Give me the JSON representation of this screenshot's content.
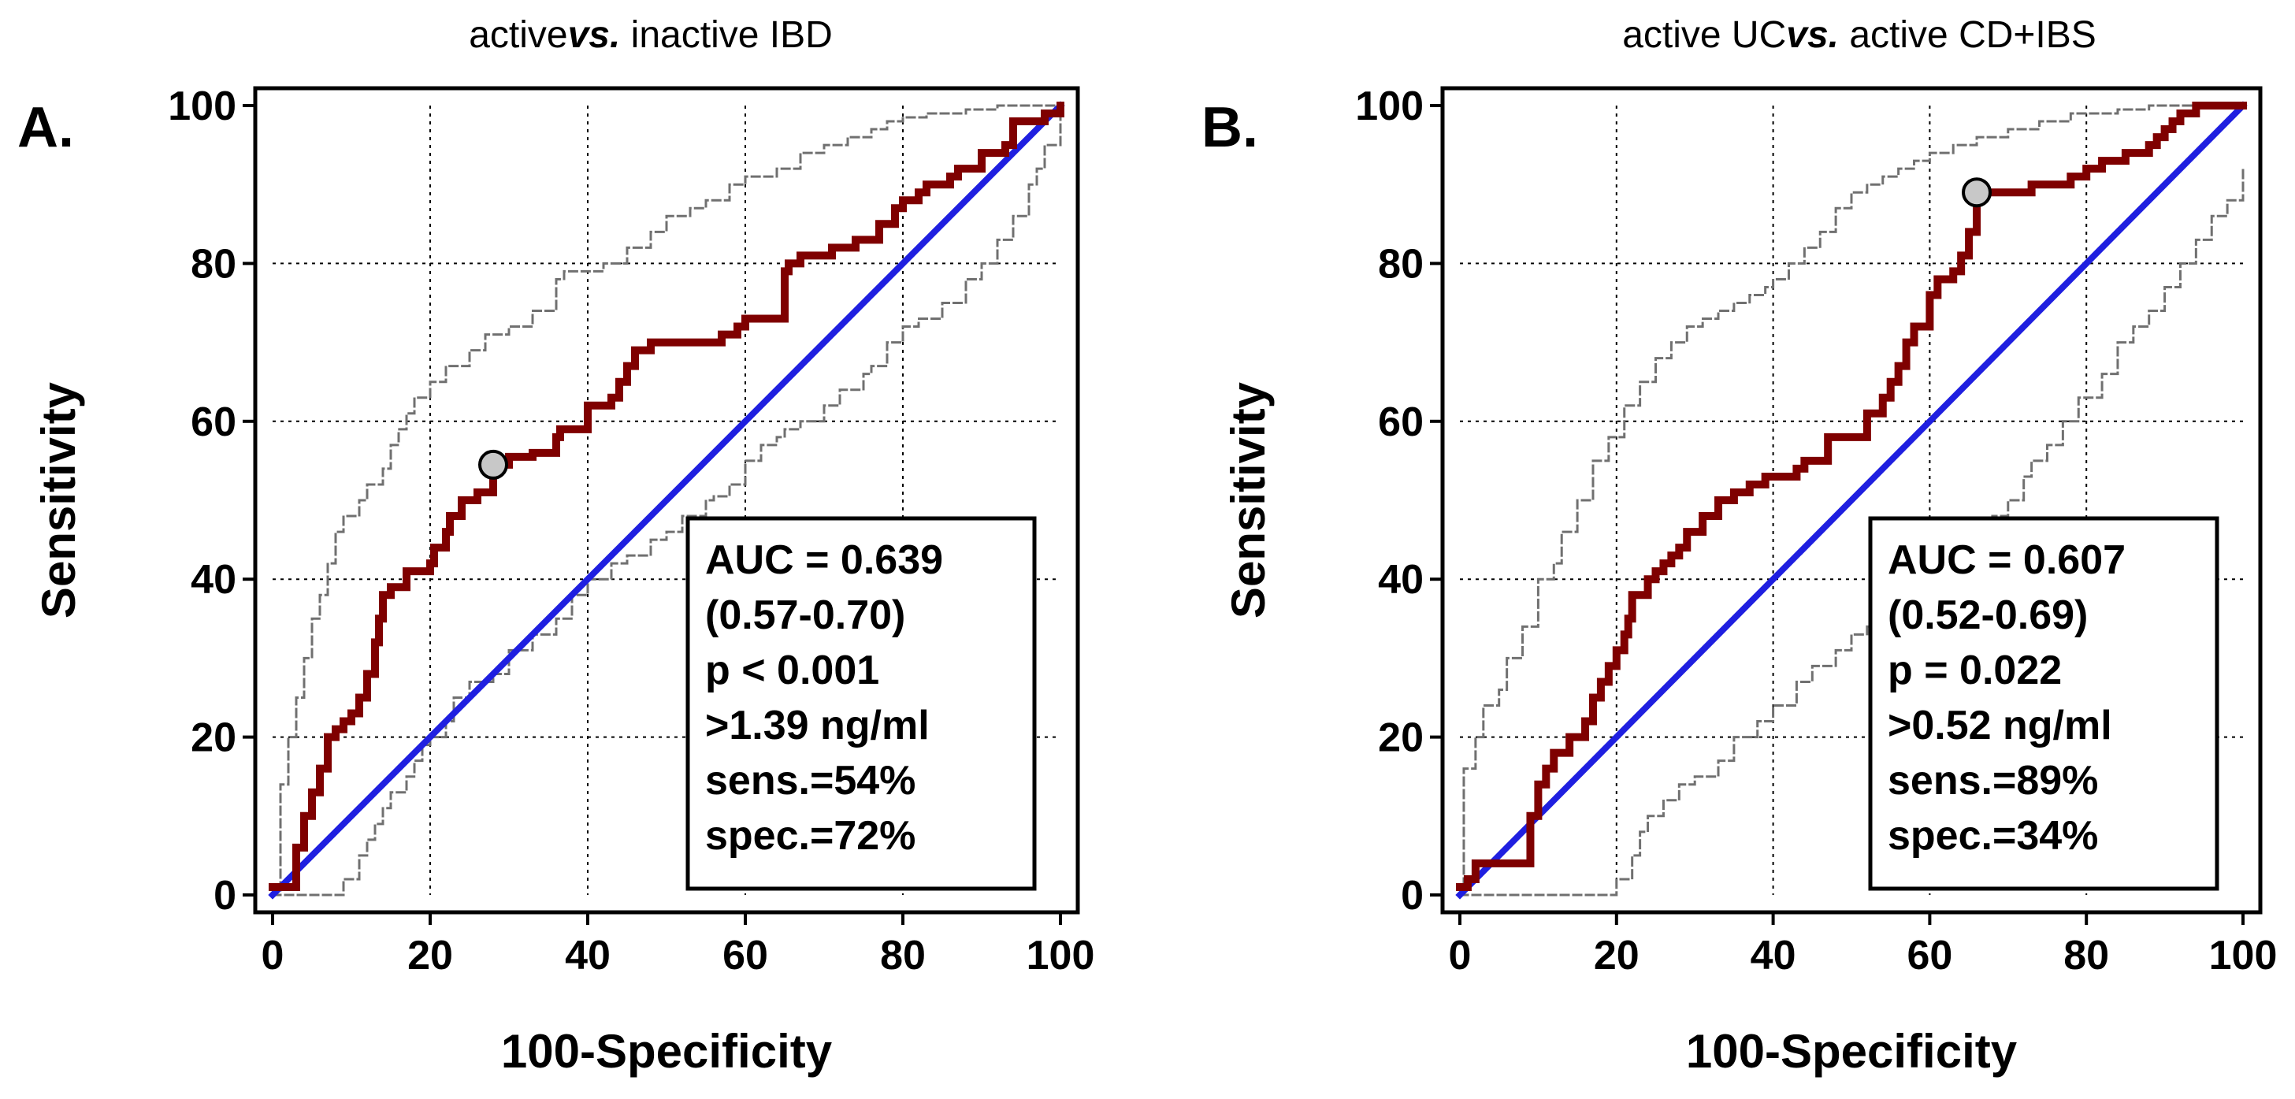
{
  "chart_data": [
    {
      "type": "line",
      "panel_label": "A.",
      "title": "activevs. inactive IBD",
      "title_parts": {
        "pre": "active",
        "italic": "vs.",
        "post": " inactive IBD"
      },
      "xlabel": "100-Specificity",
      "ylabel": "Sensitivity",
      "xlim": [
        0,
        100
      ],
      "ylim": [
        0,
        100
      ],
      "xticks": [
        0,
        20,
        40,
        60,
        80,
        100
      ],
      "yticks": [
        0,
        20,
        40,
        60,
        80,
        100
      ],
      "grid": true,
      "legend": "none",
      "stats_box_position": "bottom-right",
      "stats": [
        "AUC = 0.639",
        "(0.57-0.70)",
        "p < 0.001",
        ">1.39 ng/ml",
        "sens.=54%",
        "spec.=72%"
      ],
      "cutoff_point": {
        "x": 28,
        "y": 54.5
      },
      "series": [
        {
          "name": "ROC curve",
          "color": "#7f0000",
          "style": "step",
          "x": [
            0,
            3,
            3,
            4,
            5,
            6,
            7,
            8,
            9,
            10,
            11,
            12,
            13,
            13.5,
            14,
            15,
            17,
            20,
            20.5,
            22,
            22.5,
            24,
            24,
            26,
            28,
            28,
            30,
            33,
            36,
            36.5,
            40,
            40,
            43,
            44,
            45,
            46,
            48,
            50,
            57,
            59,
            60,
            65,
            65.5,
            67,
            71,
            74,
            77,
            79,
            80,
            82,
            83,
            86,
            87,
            90,
            93,
            94,
            97,
            98,
            100
          ],
          "y": [
            1,
            2,
            6,
            10,
            13,
            16,
            20,
            21,
            22,
            23,
            25,
            28,
            32,
            35,
            38,
            39,
            41,
            42,
            44,
            46,
            48,
            49,
            50,
            51,
            52,
            54.5,
            55.5,
            56,
            58,
            59,
            61,
            62,
            63,
            65,
            67,
            69,
            70,
            70,
            71,
            72,
            73,
            79,
            80,
            81,
            82,
            83,
            85,
            87,
            88,
            89,
            90,
            91,
            92,
            94,
            95,
            98,
            98,
            99,
            100
          ]
        },
        {
          "name": "Reference line",
          "color": "#1f1fe0",
          "style": "line",
          "x": [
            0,
            100
          ],
          "y": [
            0,
            100
          ]
        },
        {
          "name": "Upper 95% CI",
          "color": "#707070",
          "style": "dashed-step",
          "x": [
            0,
            1,
            1,
            2,
            3,
            4,
            5,
            6,
            7,
            8,
            9,
            11,
            12,
            14,
            15,
            16,
            17,
            18,
            20,
            22,
            25,
            27,
            30,
            33,
            36,
            37,
            38,
            42,
            45,
            48,
            50,
            53,
            55,
            58,
            60,
            64,
            67,
            70,
            73,
            76,
            78,
            80,
            83,
            86,
            88,
            90,
            92,
            94,
            100
          ],
          "y": [
            0,
            8,
            14,
            20,
            25,
            30,
            35,
            38,
            42,
            46,
            48,
            50,
            52,
            54,
            57,
            59,
            61,
            63,
            65,
            67,
            69,
            71,
            72,
            74,
            78,
            79,
            79,
            80,
            82,
            84,
            86,
            87,
            88,
            90,
            91,
            92,
            94,
            95,
            96,
            97,
            98,
            98.5,
            99,
            99,
            99.5,
            99.5,
            100,
            100,
            100
          ]
        },
        {
          "name": "Lower 95% CI",
          "color": "#707070",
          "style": "dashed-step",
          "x": [
            0,
            9,
            9,
            11,
            12,
            13,
            14,
            15,
            17,
            18,
            19,
            20,
            22,
            23,
            25,
            28,
            30,
            33,
            36,
            38,
            40,
            43,
            45,
            48,
            50,
            52,
            55,
            56,
            58,
            60,
            62,
            64,
            65,
            67,
            70,
            72,
            75,
            76,
            78,
            80,
            82,
            85,
            88,
            90,
            92,
            94,
            96,
            97,
            98,
            100
          ],
          "y": [
            0,
            0,
            2,
            5,
            7,
            9,
            11,
            13,
            15,
            17,
            19,
            20,
            22,
            25,
            27,
            28,
            31,
            33,
            35,
            38,
            40,
            42,
            43,
            45,
            46,
            48,
            50,
            50.5,
            52,
            55,
            57,
            58,
            59,
            60,
            62,
            64,
            66,
            67,
            70,
            72,
            73,
            75,
            78,
            80,
            83,
            86,
            90,
            92,
            95,
            100
          ]
        }
      ]
    },
    {
      "type": "line",
      "panel_label": "B.",
      "title": "active UCvs. active CD+IBS",
      "title_parts": {
        "pre": "active UC",
        "italic": "vs.",
        "post": " active CD+IBS"
      },
      "xlabel": "100-Specificity",
      "ylabel": "Sensitivity",
      "xlim": [
        0,
        100
      ],
      "ylim": [
        0,
        100
      ],
      "xticks": [
        0,
        20,
        40,
        60,
        80,
        100
      ],
      "yticks": [
        0,
        20,
        40,
        60,
        80,
        100
      ],
      "grid": true,
      "legend": "none",
      "stats_box_position": "bottom-right",
      "stats": [
        "AUC = 0.607",
        "(0.52-0.69)",
        "p = 0.022",
        ">0.52 ng/ml",
        "sens.=89%",
        "spec.=34%"
      ],
      "cutoff_point": {
        "x": 66,
        "y": 89
      },
      "series": [
        {
          "name": "ROC curve",
          "color": "#7f0000",
          "style": "step",
          "x": [
            0,
            1,
            2,
            9,
            9,
            10,
            11,
            12,
            14,
            16,
            17,
            18,
            19,
            20,
            21,
            21.5,
            22,
            24,
            25,
            26,
            27,
            28,
            29,
            31,
            33,
            35,
            37,
            39,
            43,
            44,
            47,
            52,
            54,
            55,
            56,
            57,
            58,
            60,
            61,
            63,
            64,
            65,
            66,
            66,
            70,
            73,
            76,
            78,
            80,
            82,
            85,
            88,
            89,
            90,
            91,
            92,
            94,
            100
          ],
          "y": [
            1,
            2,
            4,
            4,
            10,
            14,
            16,
            18,
            20,
            22,
            25,
            27,
            29,
            31,
            33,
            35,
            38,
            40,
            41,
            42,
            43,
            44,
            46,
            48,
            50,
            51,
            52,
            53,
            54,
            55,
            58,
            61,
            63,
            65,
            67,
            70,
            72,
            76,
            78,
            79,
            81,
            84,
            86,
            89,
            89,
            90,
            90,
            91,
            92,
            93,
            94,
            95,
            96,
            97,
            98,
            99,
            100,
            100
          ]
        },
        {
          "name": "Reference line",
          "color": "#1f1fe0",
          "style": "line",
          "x": [
            0,
            100
          ],
          "y": [
            0,
            100
          ]
        },
        {
          "name": "Upper 95% CI",
          "color": "#707070",
          "style": "dashed-step",
          "x": [
            0,
            0.5,
            0.5,
            2,
            3,
            5,
            6,
            8,
            10,
            12,
            13,
            15,
            17,
            19,
            21,
            23,
            25,
            27,
            29,
            31,
            33,
            35,
            37,
            39,
            40,
            42,
            44,
            46,
            48,
            50,
            52,
            54,
            56,
            58,
            60,
            63,
            66,
            70,
            74,
            78,
            84,
            88,
            90,
            93,
            95,
            100
          ],
          "y": [
            0,
            14,
            16,
            20,
            24,
            26,
            30,
            34,
            40,
            42,
            46,
            50,
            55,
            58,
            62,
            65,
            68,
            70,
            72,
            73,
            74,
            75,
            76,
            77,
            78,
            80,
            82,
            84,
            87,
            89,
            90,
            91,
            92,
            93,
            94,
            95,
            96,
            97,
            98,
            99,
            99.5,
            100,
            100,
            100,
            100,
            100
          ]
        },
        {
          "name": "Lower 95% CI",
          "color": "#707070",
          "style": "dashed-step",
          "x": [
            0,
            19,
            20,
            22,
            23,
            24,
            26,
            28,
            30,
            33,
            35,
            38,
            40,
            43,
            45,
            48,
            50,
            52,
            54,
            56,
            58,
            60,
            62,
            65,
            68,
            70,
            72,
            73,
            75,
            77,
            79,
            82,
            84,
            86,
            88,
            90,
            92,
            94,
            96,
            98,
            100
          ],
          "y": [
            0,
            0,
            2,
            5,
            8,
            10,
            12,
            14,
            15,
            17,
            20,
            22,
            24,
            27,
            29,
            31,
            33,
            34,
            35,
            37,
            38,
            40,
            43,
            45,
            48,
            50,
            53,
            55,
            57,
            60,
            63,
            66,
            70,
            72,
            74,
            77,
            80,
            83,
            86,
            88,
            92
          ]
        }
      ]
    }
  ]
}
